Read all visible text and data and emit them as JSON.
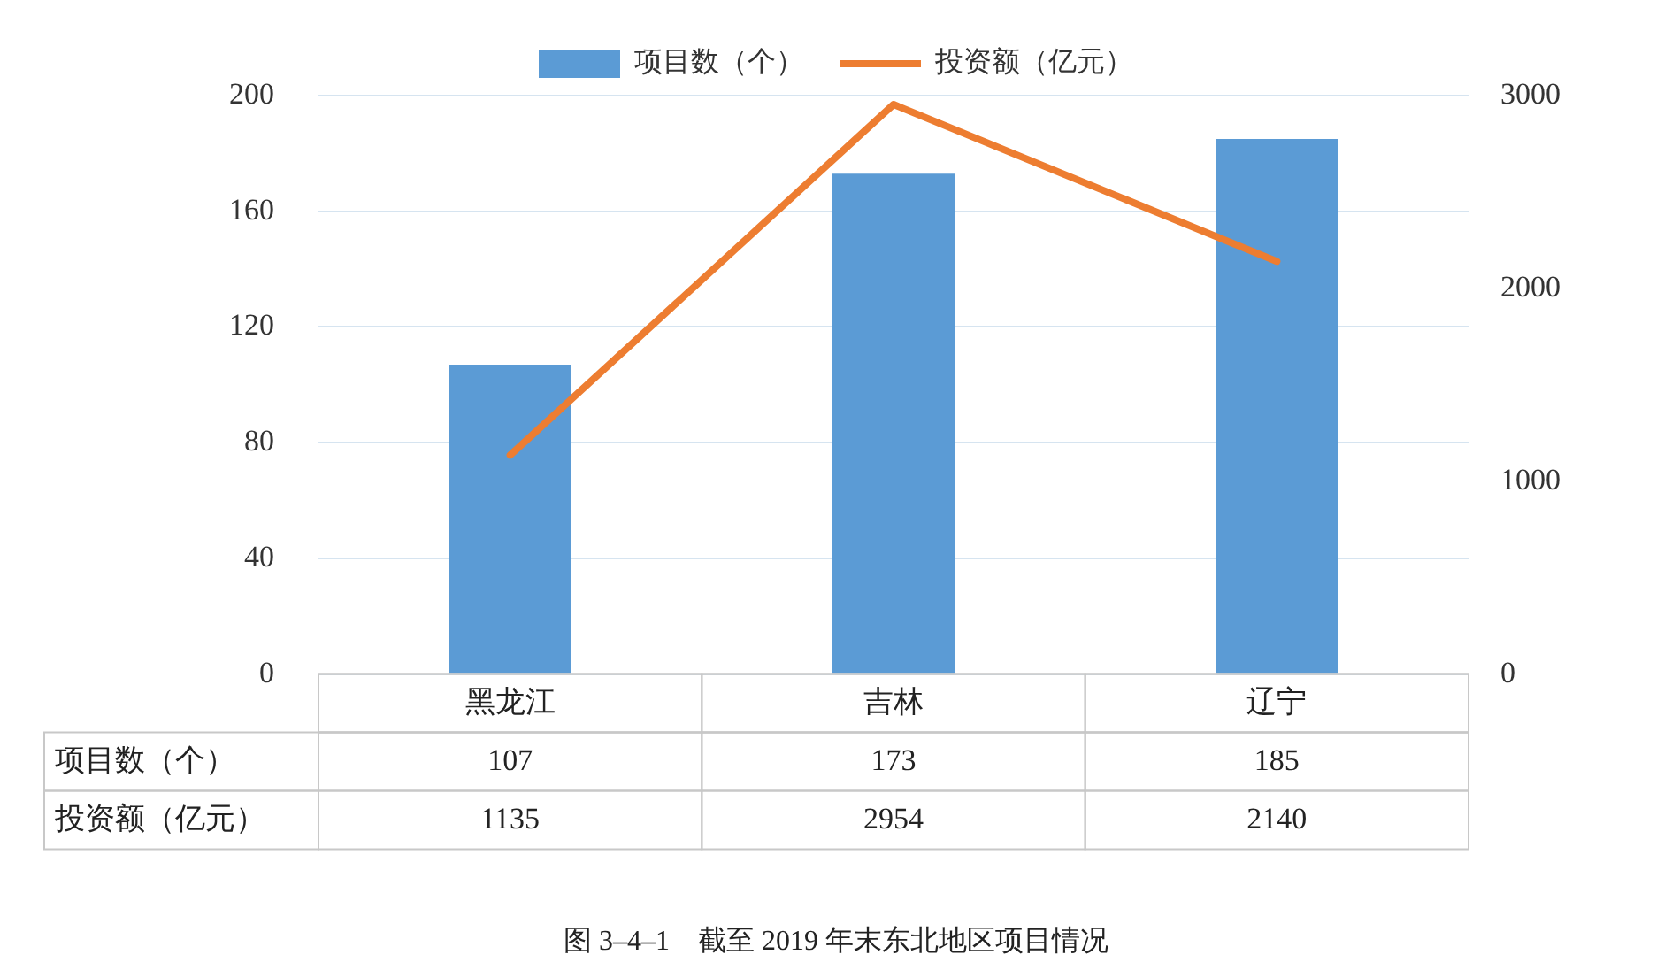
{
  "chart_data": {
    "type": "bar",
    "title": "图 3–4–1　截至 2019 年末东北地区项目情况",
    "categories": [
      "黑龙江",
      "吉林",
      "辽宁"
    ],
    "series": [
      {
        "name": "项目数（个）",
        "color": "#5b9bd5",
        "values": [
          107,
          173,
          185
        ]
      },
      {
        "name": "投资额（亿元）",
        "type": "line",
        "axis": "y2",
        "color": "#ed7d31",
        "values": [
          1135,
          2954,
          2140
        ]
      }
    ],
    "ylim": [
      0,
      200
    ],
    "yticks": [
      0,
      40,
      80,
      120,
      160,
      200
    ],
    "y2lim": [
      0,
      3000
    ],
    "y2ticks": [
      0,
      1000,
      2000,
      3000
    ],
    "grid": "y",
    "legend": "top",
    "marker": "none",
    "line_style": "solid",
    "data_labels": true
  }
}
